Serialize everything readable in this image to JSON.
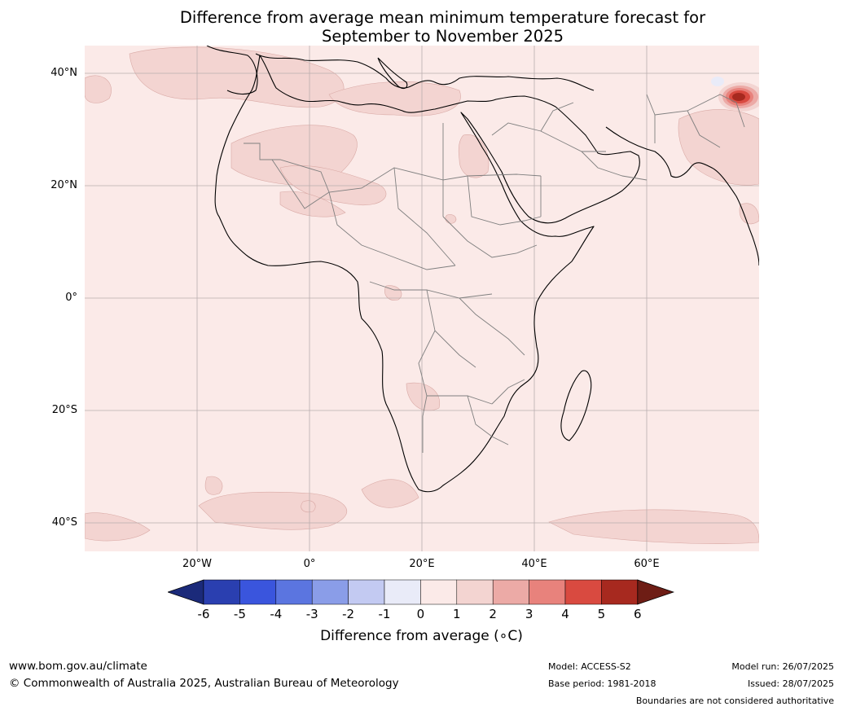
{
  "title": {
    "line1": "Difference from average mean minimum temperature forecast for",
    "line2": "September to November 2025"
  },
  "map": {
    "region": "Africa and Middle East",
    "lat_labels": [
      "40°N",
      "20°N",
      "0°",
      "20°S",
      "40°S"
    ],
    "lon_labels": [
      "20°W",
      "0°",
      "20°E",
      "40°E",
      "60°E"
    ],
    "ocean_color": "#fbeae8",
    "warm_patch_color": "#f3d4d1",
    "hotspot_color": "#c6332b",
    "cool_spot_color": "#e9ebf8"
  },
  "legend": {
    "title": "Difference from average (∘C)",
    "ticks": [
      "-6",
      "-5",
      "-4",
      "-3",
      "-2",
      "-1",
      "0",
      "1",
      "2",
      "3",
      "4",
      "5",
      "6"
    ],
    "colors": [
      "#1b2a7a",
      "#2a3fb0",
      "#3a55dd",
      "#5b75e0",
      "#8a9de8",
      "#c3caf2",
      "#e9ebf8",
      "#fbeae8",
      "#f3d4d1",
      "#ecaaa6",
      "#e8827c",
      "#d94a40",
      "#a7291f",
      "#6e1d15"
    ]
  },
  "footer": {
    "website": "www.bom.gov.au/climate",
    "copyright": "© Commonwealth of Australia 2025, Australian Bureau of Meteorology",
    "model": "Model: ACCESS-S2",
    "base_period": "Base period: 1981-2018",
    "model_run": "Model run: 26/07/2025",
    "issued": "Issued: 28/07/2025",
    "disclaimer": "Boundaries are not considered authoritative"
  }
}
